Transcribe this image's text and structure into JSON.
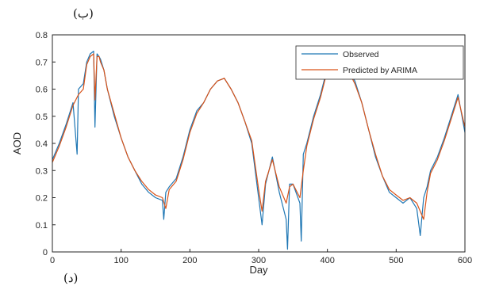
{
  "panel_label_top": "(ب)",
  "panel_label_bottom": "(د)",
  "chart_data": {
    "type": "line",
    "xlabel": "Day",
    "ylabel": "AOD",
    "xlim": [
      0,
      600
    ],
    "ylim": [
      0,
      0.8
    ],
    "xticks": [
      0,
      100,
      200,
      300,
      400,
      500,
      600
    ],
    "yticks": [
      0,
      0.1,
      0.2,
      0.3,
      0.4,
      0.5,
      0.6,
      0.7,
      0.8
    ],
    "grid": false,
    "legend_position": "top-right",
    "series": [
      {
        "name": "Observed",
        "color": "#1f77b4",
        "x": [
          0,
          10,
          20,
          30,
          36,
          38,
          45,
          50,
          55,
          60,
          62,
          65,
          68,
          70,
          75,
          80,
          90,
          100,
          110,
          120,
          130,
          140,
          150,
          160,
          162,
          165,
          170,
          180,
          190,
          200,
          210,
          220,
          230,
          240,
          250,
          255,
          260,
          270,
          280,
          290,
          300,
          305,
          310,
          320,
          330,
          340,
          342,
          345,
          350,
          360,
          362,
          365,
          370,
          380,
          390,
          400,
          410,
          420,
          430,
          440,
          450,
          460,
          470,
          480,
          490,
          500,
          510,
          520,
          530,
          535,
          540,
          545,
          550,
          560,
          570,
          580,
          590,
          600
        ],
        "values": [
          0.34,
          0.4,
          0.47,
          0.55,
          0.36,
          0.6,
          0.62,
          0.7,
          0.73,
          0.74,
          0.46,
          0.73,
          0.72,
          0.71,
          0.67,
          0.6,
          0.5,
          0.42,
          0.35,
          0.3,
          0.25,
          0.22,
          0.2,
          0.19,
          0.12,
          0.22,
          0.24,
          0.27,
          0.35,
          0.45,
          0.52,
          0.55,
          0.6,
          0.63,
          0.64,
          0.62,
          0.6,
          0.55,
          0.48,
          0.4,
          0.2,
          0.1,
          0.25,
          0.35,
          0.22,
          0.12,
          0.01,
          0.25,
          0.25,
          0.18,
          0.04,
          0.36,
          0.4,
          0.5,
          0.58,
          0.68,
          0.7,
          0.69,
          0.67,
          0.63,
          0.55,
          0.45,
          0.35,
          0.28,
          0.22,
          0.2,
          0.18,
          0.2,
          0.16,
          0.06,
          0.2,
          0.24,
          0.3,
          0.35,
          0.42,
          0.5,
          0.58,
          0.44
        ]
      },
      {
        "name": "Predicted by ARIMA",
        "color": "#d95319",
        "x": [
          0,
          10,
          20,
          30,
          38,
          45,
          50,
          55,
          60,
          62,
          65,
          68,
          70,
          75,
          80,
          90,
          100,
          110,
          120,
          130,
          140,
          150,
          160,
          165,
          170,
          180,
          190,
          200,
          210,
          220,
          230,
          240,
          250,
          260,
          270,
          280,
          290,
          300,
          305,
          310,
          320,
          330,
          340,
          345,
          350,
          360,
          365,
          370,
          380,
          390,
          400,
          410,
          420,
          430,
          440,
          450,
          460,
          470,
          480,
          490,
          500,
          510,
          520,
          530,
          540,
          545,
          550,
          560,
          570,
          580,
          590,
          600
        ],
        "values": [
          0.33,
          0.39,
          0.46,
          0.54,
          0.58,
          0.6,
          0.69,
          0.72,
          0.73,
          0.56,
          0.72,
          0.72,
          0.7,
          0.67,
          0.6,
          0.51,
          0.42,
          0.35,
          0.3,
          0.26,
          0.23,
          0.21,
          0.2,
          0.16,
          0.23,
          0.26,
          0.34,
          0.44,
          0.51,
          0.55,
          0.6,
          0.63,
          0.64,
          0.6,
          0.55,
          0.48,
          0.41,
          0.23,
          0.15,
          0.26,
          0.34,
          0.24,
          0.18,
          0.24,
          0.25,
          0.2,
          0.3,
          0.39,
          0.49,
          0.57,
          0.67,
          0.69,
          0.68,
          0.67,
          0.62,
          0.55,
          0.45,
          0.36,
          0.28,
          0.23,
          0.21,
          0.19,
          0.2,
          0.18,
          0.12,
          0.22,
          0.29,
          0.34,
          0.41,
          0.49,
          0.57,
          0.46
        ]
      }
    ]
  }
}
